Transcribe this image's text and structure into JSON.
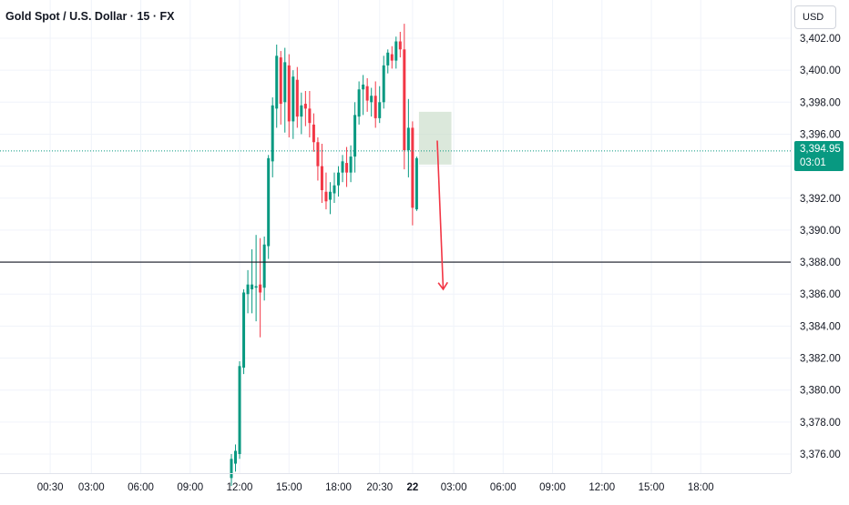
{
  "header": {
    "title": "Gold Spot / U.S. Dollar · 15 · FX"
  },
  "price_scale": {
    "currency": "USD"
  },
  "current_price": {
    "value": "3,394.95",
    "countdown": "03:01",
    "color": "#089981"
  },
  "colors": {
    "up": "#089981",
    "down": "#f23645",
    "grid": "#f0f3fa",
    "level_line": "#131722",
    "box_fill": "#c8dcc8",
    "arrow": "#f23645"
  },
  "chart_data": {
    "type": "candlestick",
    "symbol": "XAUUSD",
    "interval": "15",
    "ylim": [
      3374.5,
      3404
    ],
    "y_ticks": [
      "3,376.00",
      "3,378.00",
      "3,380.00",
      "3,382.00",
      "3,384.00",
      "3,386.00",
      "3,388.00",
      "3,390.00",
      "3,392.00",
      "3,394.00",
      "3,396.00",
      "3,398.00",
      "3,400.00",
      "3,402.00"
    ],
    "y_tick_values": [
      3376,
      3378,
      3380,
      3382,
      3384,
      3386,
      3388,
      3390,
      3392,
      3394,
      3396,
      3398,
      3400,
      3402
    ],
    "x_ticks": [
      "00:30",
      "03:00",
      "06:00",
      "09:00",
      "12:00",
      "15:00",
      "18:00",
      "20:30",
      "22",
      "03:00",
      "06:00",
      "09:00",
      "12:00",
      "15:00",
      "18:00"
    ],
    "x_tick_bars": [
      -44,
      -34,
      -22,
      -10,
      2,
      14,
      26,
      36,
      44,
      54,
      66,
      78,
      90,
      102,
      114
    ],
    "candles": [
      [
        3374.5,
        3376.0,
        3374.0,
        3375.7
      ],
      [
        3375.4,
        3376.6,
        3374.9,
        3376.2
      ],
      [
        3376.0,
        3381.8,
        3375.7,
        3381.5
      ],
      [
        3381.4,
        3386.3,
        3381.0,
        3386.1
      ],
      [
        3386.0,
        3387.5,
        3384.8,
        3386.6
      ],
      [
        3386.3,
        3388.8,
        3384.8,
        3386.6
      ],
      [
        3386.4,
        3389.7,
        3384.3,
        3386.5
      ],
      [
        3386.6,
        3389.5,
        3383.3,
        3386.1
      ],
      [
        3386.4,
        3389.6,
        3385.6,
        3389.1
      ],
      [
        3389.0,
        3394.7,
        3388.2,
        3394.5
      ],
      [
        3394.3,
        3398.3,
        3393.3,
        3397.8
      ],
      [
        3397.6,
        3401.6,
        3396.4,
        3400.9
      ],
      [
        3400.8,
        3401.2,
        3396.6,
        3397.9
      ],
      [
        3398.0,
        3401.4,
        3396.1,
        3400.5
      ],
      [
        3400.3,
        3401.0,
        3395.8,
        3396.8
      ],
      [
        3396.8,
        3400.0,
        3395.7,
        3399.6
      ],
      [
        3399.4,
        3400.2,
        3396.4,
        3397.1
      ],
      [
        3397.1,
        3398.6,
        3396.0,
        3397.8
      ],
      [
        3397.9,
        3398.7,
        3396.5,
        3397.6
      ],
      [
        3397.6,
        3398.7,
        3395.8,
        3396.7
      ],
      [
        3396.6,
        3397.3,
        3394.9,
        3395.5
      ],
      [
        3395.5,
        3395.8,
        3393.1,
        3394.0
      ],
      [
        3394.0,
        3395.4,
        3391.7,
        3392.5
      ],
      [
        3392.4,
        3393.6,
        3391.3,
        3391.8
      ],
      [
        3391.9,
        3393.0,
        3391.0,
        3392.4
      ],
      [
        3392.3,
        3393.6,
        3391.7,
        3392.8
      ],
      [
        3392.8,
        3394.0,
        3392.1,
        3393.6
      ],
      [
        3393.6,
        3394.7,
        3393.0,
        3394.3
      ],
      [
        3394.2,
        3395.2,
        3392.7,
        3393.6
      ],
      [
        3393.6,
        3395.3,
        3393.0,
        3394.6
      ],
      [
        3394.6,
        3398.0,
        3393.6,
        3397.2
      ],
      [
        3397.1,
        3399.3,
        3396.6,
        3398.8
      ],
      [
        3398.8,
        3399.7,
        3397.2,
        3399.1
      ],
      [
        3399.0,
        3399.5,
        3397.4,
        3398.1
      ],
      [
        3398.0,
        3398.9,
        3397.1,
        3398.4
      ],
      [
        3398.4,
        3399.3,
        3396.4,
        3397.0
      ],
      [
        3397.0,
        3399.0,
        3396.7,
        3398.0
      ],
      [
        3398.0,
        3400.9,
        3397.6,
        3400.3
      ],
      [
        3400.3,
        3401.3,
        3399.8,
        3401.1
      ],
      [
        3401.0,
        3401.5,
        3400.1,
        3400.6
      ],
      [
        3400.6,
        3402.1,
        3400.1,
        3401.8
      ],
      [
        3401.8,
        3402.4,
        3400.8,
        3401.3
      ],
      [
        3401.3,
        3402.9,
        3393.8,
        3395.0
      ],
      [
        3395.0,
        3398.2,
        3393.3,
        3396.4
      ],
      [
        3396.4,
        3396.8,
        3390.3,
        3391.4
      ],
      [
        3391.3,
        3394.6,
        3391.2,
        3394.5
      ]
    ],
    "horizontal_line": 3388.0,
    "current_price_line": 3394.95,
    "annotations": [
      {
        "type": "rectangle",
        "from_bar": 46,
        "to_bar": 53,
        "y_top": 3397.4,
        "y_bottom": 3394.1
      },
      {
        "type": "arrow",
        "from_bar": 50,
        "from_y": 3395.6,
        "to_bar": 51,
        "to_y": 3386.3,
        "direction": "down"
      }
    ]
  }
}
